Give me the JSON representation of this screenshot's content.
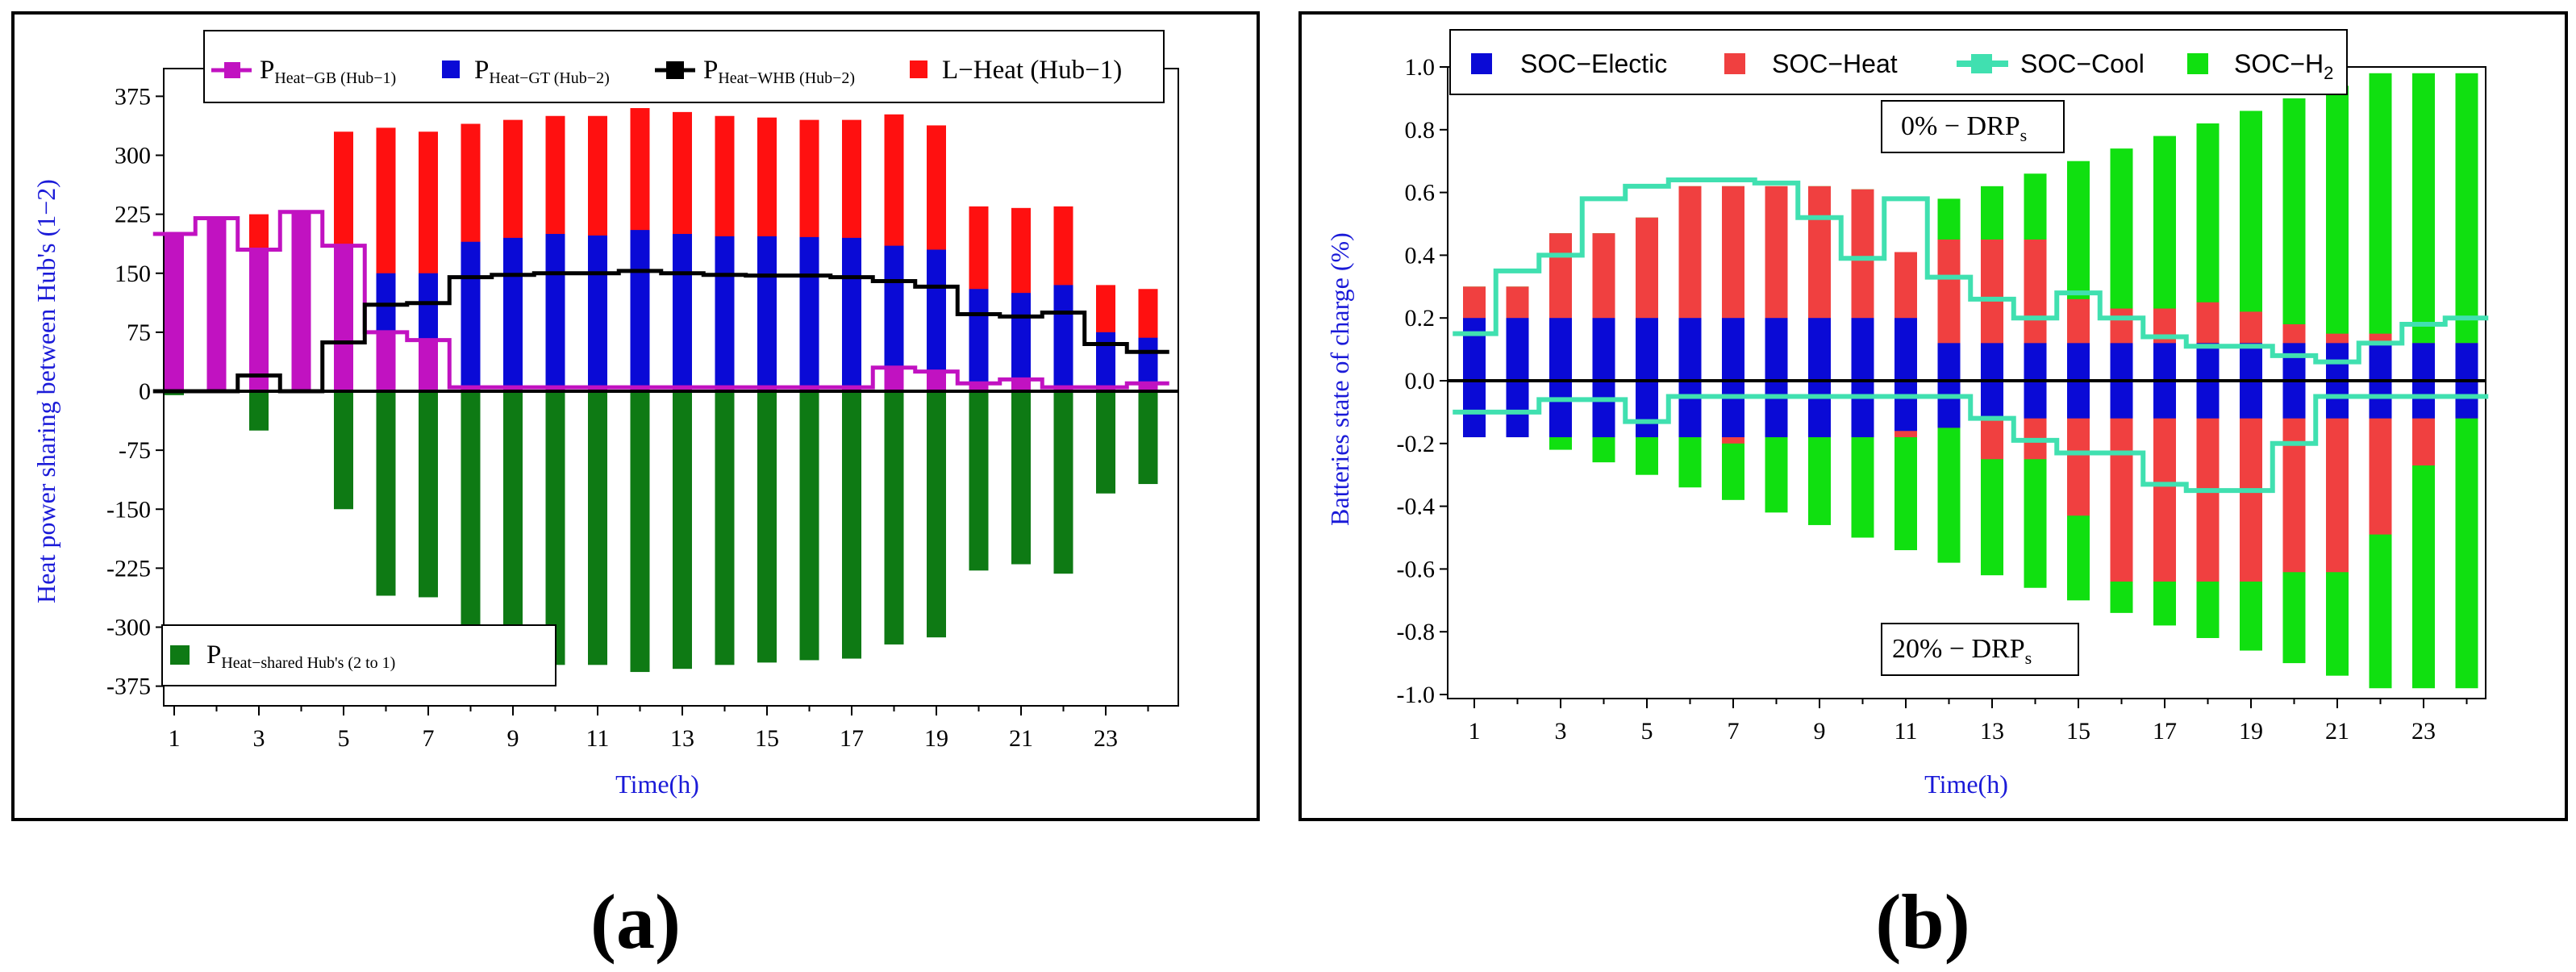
{
  "colors": {
    "gb": "#c112c1",
    "gt": "#0a0ad6",
    "whb": "#000000",
    "lheat": "#ff1010",
    "shared": "#0e7a14",
    "soc_elec": "#0a0ad6",
    "soc_heat": "#f04040",
    "soc_cool": "#40e0b0",
    "soc_h2": "#10e010",
    "axis_label": "#1a1ad8"
  },
  "panels": {
    "a": {
      "label": "(a)"
    },
    "b": {
      "label": "(b)"
    }
  },
  "chart_data": [
    {
      "id": "a",
      "type": "bar",
      "ylabel": "Heat power sharing between Hub's (1−2)",
      "xlabel": "Time(h)",
      "ylim": [
        -400,
        400
      ],
      "yticks": [
        375,
        300,
        225,
        150,
        75,
        0,
        -75,
        -150,
        -225,
        -300,
        -375
      ],
      "x": [
        1,
        2,
        3,
        4,
        5,
        6,
        7,
        8,
        9,
        10,
        11,
        12,
        13,
        14,
        15,
        16,
        17,
        18,
        19,
        20,
        21,
        22,
        23,
        24
      ],
      "xticks": [
        1,
        3,
        5,
        7,
        9,
        11,
        13,
        15,
        17,
        19,
        21,
        23
      ],
      "legend": {
        "gb": {
          "main": "P",
          "sub": "Heat−GB (Hub−1)"
        },
        "gt": {
          "main": "P",
          "sub": "Heat−GT (Hub−2)"
        },
        "whb": {
          "main": "P",
          "sub": "Heat−WHB (Hub−2)"
        },
        "lheat": {
          "main": "L−Heat (Hub−1)"
        },
        "shared": {
          "main": "P",
          "sub": "Heat−shared Hub's (2 to 1)"
        }
      },
      "series": [
        {
          "name": "L−Heat (Hub−1)",
          "kind": "bar",
          "values": [
            200,
            0,
            225,
            0,
            330,
            335,
            330,
            340,
            345,
            350,
            350,
            360,
            355,
            350,
            348,
            345,
            345,
            352,
            338,
            235,
            233,
            235,
            135,
            130
          ]
        },
        {
          "name": "P Heat−GT (Hub−2)",
          "kind": "bar",
          "values": [
            0,
            0,
            0,
            0,
            0,
            150,
            150,
            190,
            195,
            200,
            198,
            205,
            200,
            197,
            197,
            196,
            195,
            185,
            180,
            130,
            125,
            135,
            75,
            68
          ]
        },
        {
          "name": "P Heat−GB (Hub−1)",
          "kind": "bar",
          "values": [
            200,
            220,
            180,
            228,
            185,
            75,
            65,
            5,
            5,
            5,
            5,
            5,
            5,
            5,
            5,
            5,
            5,
            30,
            25,
            10,
            15,
            5,
            5,
            10
          ]
        },
        {
          "name": "P Heat−shared Hub's (2 to 1)",
          "kind": "bar",
          "values": [
            -5,
            0,
            -50,
            0,
            -150,
            -260,
            -262,
            -338,
            -342,
            -348,
            -348,
            -357,
            -353,
            -348,
            -345,
            -342,
            -340,
            -322,
            -313,
            -228,
            -220,
            -232,
            -130,
            -118
          ]
        },
        {
          "name": "P Heat−WHB (Hub−2)",
          "kind": "step",
          "values": [
            0,
            0,
            20,
            0,
            62,
            110,
            112,
            145,
            148,
            150,
            150,
            153,
            150,
            148,
            147,
            147,
            145,
            140,
            133,
            98,
            95,
            100,
            60,
            50
          ]
        }
      ]
    },
    {
      "id": "b",
      "type": "bar",
      "ylabel": "Batteries state of charge (%)",
      "xlabel": "Time(h)",
      "ylim": [
        -1.0,
        1.0
      ],
      "yticks": [
        1.0,
        0.8,
        0.6,
        0.4,
        0.2,
        0.0,
        -0.2,
        -0.4,
        -0.6,
        -0.8,
        -1.0
      ],
      "ytick_labels": [
        "1.0",
        "0.8",
        "0.6",
        "0.4",
        "0.2",
        "0.0",
        "-0.2",
        "-0.4",
        "-0.6",
        "-0.8",
        "-1.0"
      ],
      "x": [
        1,
        2,
        3,
        4,
        5,
        6,
        7,
        8,
        9,
        10,
        11,
        12,
        13,
        14,
        15,
        16,
        17,
        18,
        19,
        20,
        21,
        22,
        23,
        24
      ],
      "xticks": [
        1,
        3,
        5,
        7,
        9,
        11,
        13,
        15,
        17,
        19,
        21,
        23
      ],
      "legend": {
        "elec": {
          "main": "SOC−Electic"
        },
        "heat": {
          "main": "SOC−Heat"
        },
        "cool": {
          "main": "SOC−Cool"
        },
        "h2": {
          "main": "SOC−H",
          "sub": "2"
        }
      },
      "annotations": {
        "top": {
          "main": "0% − DRP",
          "sub": "s"
        },
        "bottom": {
          "main": "20% − DRP",
          "sub": "s"
        }
      },
      "series": [
        {
          "name": "SOC−Electic (0%)",
          "kind": "bar",
          "values": [
            0.2,
            0.2,
            0.2,
            0.2,
            0.2,
            0.2,
            0.2,
            0.2,
            0.2,
            0.2,
            0.2,
            0.12,
            0.12,
            0.12,
            0.12,
            0.12,
            0.12,
            0.12,
            0.12,
            0.12,
            0.12,
            0.12,
            0.12,
            0.12
          ]
        },
        {
          "name": "SOC−Heat (0%)",
          "kind": "bar",
          "values": [
            0.3,
            0.3,
            0.47,
            0.47,
            0.52,
            0.62,
            0.62,
            0.62,
            0.62,
            0.61,
            0.41,
            0.45,
            0.45,
            0.45,
            0.26,
            0.23,
            0.23,
            0.25,
            0.22,
            0.18,
            0.15,
            0.15,
            0.12,
            0.12
          ]
        },
        {
          "name": "SOC−H2 (0%)",
          "kind": "bar",
          "values": [
            0.3,
            0.3,
            0.47,
            0.47,
            0.52,
            0.62,
            0.62,
            0.62,
            0.62,
            0.61,
            0.41,
            0.58,
            0.62,
            0.66,
            0.7,
            0.74,
            0.78,
            0.82,
            0.86,
            0.9,
            0.94,
            0.98,
            0.98,
            0.98
          ]
        },
        {
          "name": "SOC−Electic (20%)",
          "kind": "bar",
          "values": [
            -0.18,
            -0.18,
            -0.18,
            -0.18,
            -0.18,
            -0.18,
            -0.18,
            -0.18,
            -0.18,
            -0.18,
            -0.16,
            -0.15,
            -0.12,
            -0.12,
            -0.12,
            -0.12,
            -0.12,
            -0.12,
            -0.12,
            -0.12,
            -0.12,
            -0.12,
            -0.12,
            -0.12
          ]
        },
        {
          "name": "SOC−Heat (20%)",
          "kind": "bar",
          "values": [
            -0.18,
            -0.18,
            -0.18,
            -0.18,
            -0.18,
            -0.18,
            -0.2,
            -0.18,
            -0.18,
            -0.18,
            -0.18,
            -0.15,
            -0.25,
            -0.25,
            -0.43,
            -0.64,
            -0.64,
            -0.64,
            -0.64,
            -0.61,
            -0.61,
            -0.49,
            -0.27,
            -0.12
          ]
        },
        {
          "name": "SOC−H2 (20%)",
          "kind": "bar",
          "values": [
            -0.18,
            -0.18,
            -0.22,
            -0.26,
            -0.3,
            -0.34,
            -0.38,
            -0.42,
            -0.46,
            -0.5,
            -0.54,
            -0.58,
            -0.62,
            -0.66,
            -0.7,
            -0.74,
            -0.78,
            -0.82,
            -0.86,
            -0.9,
            -0.94,
            -0.98,
            -0.98,
            -0.98
          ]
        },
        {
          "name": "SOC−Cool (0%)",
          "kind": "step",
          "values": [
            0.15,
            0.35,
            0.4,
            0.58,
            0.62,
            0.64,
            0.64,
            0.63,
            0.52,
            0.39,
            0.58,
            0.33,
            0.26,
            0.2,
            0.28,
            0.2,
            0.14,
            0.11,
            0.11,
            0.08,
            0.06,
            0.12,
            0.18,
            0.2
          ]
        },
        {
          "name": "SOC−Cool (20%)",
          "kind": "step",
          "values": [
            -0.1,
            -0.1,
            -0.06,
            -0.06,
            -0.13,
            -0.05,
            -0.05,
            -0.05,
            -0.05,
            -0.05,
            -0.05,
            -0.05,
            -0.12,
            -0.19,
            -0.23,
            -0.23,
            -0.33,
            -0.35,
            -0.35,
            -0.2,
            -0.05,
            -0.05,
            -0.05,
            -0.05
          ]
        }
      ]
    }
  ]
}
